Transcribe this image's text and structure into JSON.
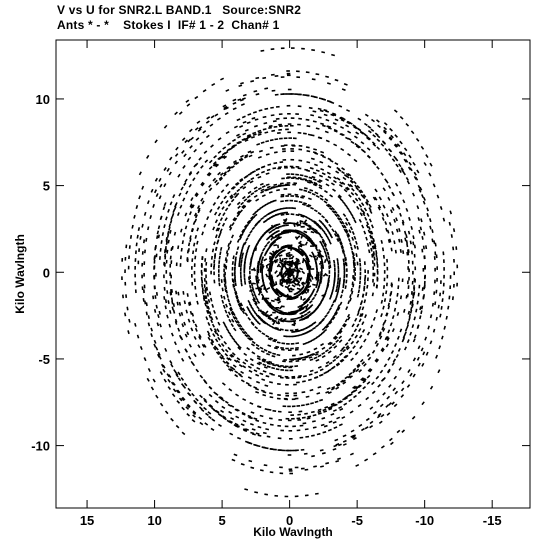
{
  "header": {
    "line1": "V vs U for SNR2.L BAND.1   Source:SNR2",
    "line2": "Ants * - *    Stokes I  IF# 1 - 2  Chan# 1"
  },
  "chart_data": {
    "type": "scatter",
    "title": "V vs U for SNR2.L BAND.1   Source:SNR2",
    "subtitle": "Ants * - *    Stokes I  IF# 1 - 2  Chan# 1",
    "xlabel": "Kilo Wavlngth",
    "ylabel": "Kilo Wavlngth",
    "xlim": [
      17.3,
      -17.8
    ],
    "ylim": [
      -13.6,
      13.4
    ],
    "x_ticks": [
      15,
      10,
      5,
      0,
      -5,
      -10,
      -15
    ],
    "x_tick_labels": [
      "15",
      "10",
      "5",
      "0",
      "-5",
      "-10",
      "-15"
    ],
    "y_ticks": [
      10,
      5,
      0,
      -5,
      -10
    ],
    "y_tick_labels": [
      "10",
      "5",
      "0",
      "-5",
      "-10"
    ],
    "grid": false,
    "legend": "none",
    "marker_color": "#000000",
    "pattern": "Conjugate-symmetric uv-coverage: radial streaks of short dash markers along ~12 spoke directions, dense near the origin, extending out to about 13 kilo-wavelengths",
    "spoke_angles_deg": [
      0,
      15,
      40,
      60,
      80,
      100,
      120,
      140,
      160,
      180,
      195,
      220,
      240,
      260,
      280,
      300,
      320,
      340
    ],
    "max_radius": 13
  }
}
